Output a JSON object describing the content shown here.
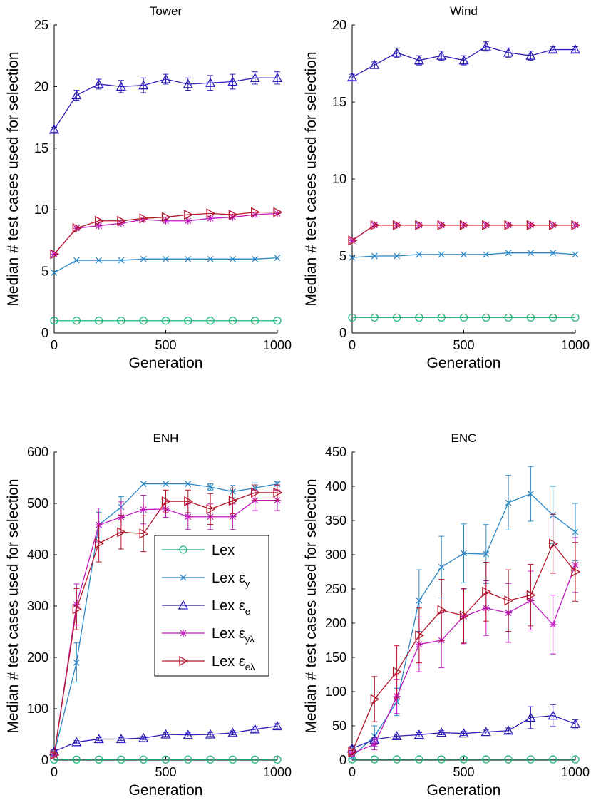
{
  "figure": {
    "ylabel": "Median # test cases used for selection",
    "xlabel": "Generation"
  },
  "series_styles": {
    "lex": {
      "color": "#1db57a",
      "marker": "circle"
    },
    "lex_ey": {
      "color": "#2a88c6",
      "marker": "x"
    },
    "lex_ee": {
      "color": "#2f1fb8",
      "marker": "triangle-up"
    },
    "lex_eyl": {
      "color": "#c218bf",
      "marker": "asterisk"
    },
    "lex_eel": {
      "color": "#b4182b",
      "marker": "triangle-right"
    }
  },
  "legend": {
    "placement": "inside ENH panel, center-right",
    "entries": [
      {
        "key": "lex",
        "base": "Lex",
        "sym": "",
        "sub": ""
      },
      {
        "key": "lex_ey",
        "base": "Lex",
        "sym": "ε",
        "sub": "y"
      },
      {
        "key": "lex_ee",
        "base": "Lex",
        "sym": "ε",
        "sub": "e"
      },
      {
        "key": "lex_eyl",
        "base": "Lex",
        "sym": "ε",
        "sub": "yλ"
      },
      {
        "key": "lex_eel",
        "base": "Lex",
        "sym": "ε",
        "sub": "eλ"
      }
    ]
  },
  "chart_data": [
    {
      "type": "line",
      "title": "Tower",
      "xlabel": "Generation",
      "ylabel": "Median # test cases used for selection",
      "xlim": [
        0,
        1000
      ],
      "ylim": [
        0,
        25
      ],
      "xticks": [
        0,
        500,
        1000
      ],
      "yticks": [
        0,
        5,
        10,
        15,
        20,
        25
      ],
      "grid": false,
      "x": [
        0,
        100,
        200,
        300,
        400,
        500,
        600,
        700,
        800,
        900,
        1000
      ],
      "series": [
        {
          "key": "lex",
          "values": [
            1,
            1,
            1,
            1,
            1,
            1,
            1,
            1,
            1,
            1,
            1
          ]
        },
        {
          "key": "lex_ey",
          "values": [
            4.9,
            5.9,
            5.9,
            5.9,
            6.0,
            6.0,
            6.0,
            6.0,
            6.0,
            6.0,
            6.1
          ]
        },
        {
          "key": "lex_ee",
          "values": [
            16.5,
            19.3,
            20.2,
            20.0,
            20.1,
            20.6,
            20.2,
            20.3,
            20.4,
            20.7,
            20.7
          ],
          "err": [
            0.2,
            0.4,
            0.4,
            0.5,
            0.6,
            0.4,
            0.5,
            0.6,
            0.6,
            0.5,
            0.5
          ]
        },
        {
          "key": "lex_eyl",
          "values": [
            6.4,
            8.5,
            8.7,
            8.9,
            9.2,
            9.1,
            9.1,
            9.3,
            9.4,
            9.6,
            9.7
          ]
        },
        {
          "key": "lex_eel",
          "values": [
            6.4,
            8.5,
            9.1,
            9.1,
            9.3,
            9.4,
            9.6,
            9.7,
            9.6,
            9.8,
            9.8
          ]
        }
      ]
    },
    {
      "type": "line",
      "title": "Wind",
      "xlabel": "Generation",
      "ylabel": "Median # test cases used for selection",
      "xlim": [
        0,
        1000
      ],
      "ylim": [
        0,
        20
      ],
      "xticks": [
        0,
        500,
        1000
      ],
      "yticks": [
        0,
        5,
        10,
        15,
        20
      ],
      "grid": false,
      "x": [
        0,
        100,
        200,
        300,
        400,
        500,
        600,
        700,
        800,
        900,
        1000
      ],
      "series": [
        {
          "key": "lex",
          "values": [
            1,
            1,
            1,
            1,
            1,
            1,
            1,
            1,
            1,
            1,
            1
          ]
        },
        {
          "key": "lex_ey",
          "values": [
            4.9,
            5.0,
            5.0,
            5.1,
            5.1,
            5.1,
            5.1,
            5.2,
            5.2,
            5.2,
            5.1
          ]
        },
        {
          "key": "lex_ee",
          "values": [
            16.6,
            17.4,
            18.2,
            17.7,
            18.0,
            17.7,
            18.6,
            18.2,
            18.0,
            18.4,
            18.4
          ],
          "err": [
            0.2,
            0.2,
            0.3,
            0.3,
            0.3,
            0.3,
            0.3,
            0.3,
            0.3,
            0.2,
            0.2
          ]
        },
        {
          "key": "lex_eyl",
          "values": [
            6.0,
            7.0,
            7.0,
            7.0,
            7.0,
            7.0,
            7.0,
            7.0,
            7.0,
            7.0,
            7.0
          ]
        },
        {
          "key": "lex_eel",
          "values": [
            6.0,
            7.0,
            7.0,
            7.0,
            7.0,
            7.0,
            7.0,
            7.0,
            7.0,
            7.0,
            7.0
          ]
        }
      ]
    },
    {
      "type": "line",
      "title": "ENH",
      "xlabel": "Generation",
      "ylabel": "Median # test cases used for selection",
      "xlim": [
        0,
        1000
      ],
      "ylim": [
        0,
        600
      ],
      "xticks": [
        0,
        500,
        1000
      ],
      "yticks": [
        0,
        100,
        200,
        300,
        400,
        500,
        600
      ],
      "grid": false,
      "x": [
        0,
        100,
        200,
        300,
        400,
        500,
        600,
        700,
        800,
        900,
        1000
      ],
      "series": [
        {
          "key": "lex",
          "values": [
            1,
            1,
            1,
            1,
            1,
            1,
            1,
            1,
            1,
            1,
            1
          ]
        },
        {
          "key": "lex_ey",
          "values": [
            12,
            190,
            458,
            493,
            538,
            538,
            538,
            532,
            523,
            530,
            538
          ],
          "err": [
            4,
            38,
            25,
            20,
            0,
            0,
            0,
            6,
            12,
            10,
            4
          ]
        },
        {
          "key": "lex_ee",
          "values": [
            17,
            35,
            41,
            41,
            43,
            50,
            49,
            50,
            53,
            60,
            66
          ],
          "err": [
            3,
            3,
            3,
            3,
            3,
            4,
            4,
            4,
            4,
            5,
            5
          ]
        },
        {
          "key": "lex_eyl",
          "values": [
            10,
            303,
            458,
            473,
            488,
            489,
            474,
            474,
            474,
            506,
            506
          ],
          "err": [
            4,
            40,
            33,
            30,
            28,
            16,
            25,
            25,
            25,
            20,
            20
          ]
        },
        {
          "key": "lex_eel",
          "values": [
            10,
            294,
            422,
            444,
            441,
            504,
            504,
            489,
            505,
            521,
            521
          ],
          "err": [
            4,
            40,
            36,
            33,
            35,
            22,
            22,
            30,
            25,
            15,
            15
          ]
        }
      ]
    },
    {
      "type": "line",
      "title": "ENC",
      "xlabel": "Generation",
      "ylabel": "Median # test cases used for selection",
      "xlim": [
        0,
        1000
      ],
      "ylim": [
        0,
        450
      ],
      "xticks": [
        0,
        500,
        1000
      ],
      "yticks": [
        0,
        50,
        100,
        150,
        200,
        250,
        300,
        350,
        400,
        450
      ],
      "grid": false,
      "x": [
        0,
        100,
        200,
        300,
        400,
        500,
        600,
        700,
        800,
        900,
        1000
      ],
      "series": [
        {
          "key": "lex",
          "values": [
            1,
            1,
            1,
            1,
            1,
            1,
            1,
            1,
            1,
            1,
            1
          ]
        },
        {
          "key": "lex_ey",
          "values": [
            5,
            35,
            85,
            233,
            282,
            302,
            301,
            376,
            389,
            358,
            333
          ],
          "err": [
            3,
            15,
            20,
            45,
            45,
            43,
            43,
            40,
            40,
            42,
            42
          ]
        },
        {
          "key": "lex_ee",
          "values": [
            17,
            30,
            35,
            37,
            40,
            39,
            41,
            43,
            62,
            65,
            53
          ],
          "err": [
            3,
            3,
            3,
            3,
            3,
            3,
            3,
            4,
            16,
            16,
            6
          ]
        },
        {
          "key": "lex_eyl",
          "values": [
            10,
            23,
            93,
            169,
            175,
            210,
            222,
            215,
            233,
            198,
            285
          ],
          "err": [
            4,
            8,
            25,
            40,
            40,
            40,
            40,
            43,
            43,
            43,
            40
          ]
        },
        {
          "key": "lex_eel",
          "values": [
            12,
            89,
            129,
            182,
            219,
            211,
            246,
            233,
            241,
            316,
            275
          ],
          "err": [
            4,
            33,
            38,
            40,
            45,
            40,
            43,
            45,
            45,
            43,
            43
          ]
        }
      ]
    }
  ]
}
